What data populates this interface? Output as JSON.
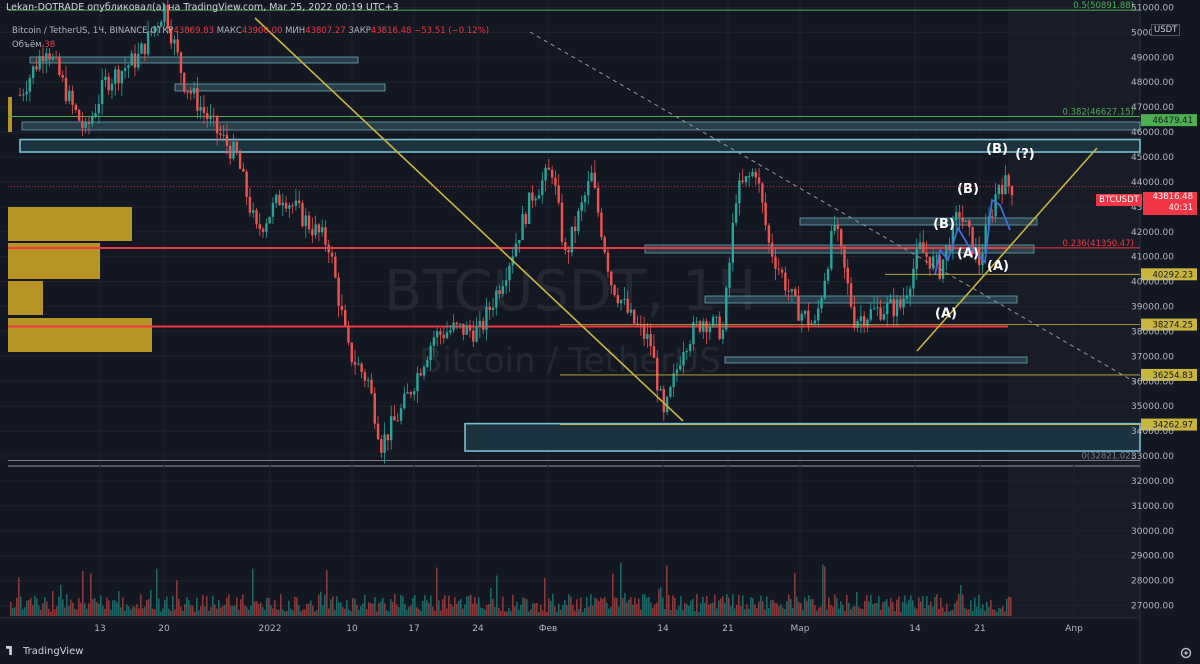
{
  "header": {
    "publisher": "Lekan-DOTRADE опубликовал(а) на TradingView.com, Mar 25, 2022 00:19 UTC+3"
  },
  "info": {
    "symbol": "Bitcoin / TetherUS, 1Ч, BINANCE",
    "open_label": "ОТКР",
    "open": "43869.83",
    "high_label": "МАКС",
    "high": "43900.00",
    "low_label": "МИН",
    "low": "43807.27",
    "close_label": "ЗАКР",
    "close": "43816.48",
    "change": "−53.51 (−0.12%)"
  },
  "volume_label": {
    "label": "Объём",
    "value": "38"
  },
  "watermark": {
    "symbol": "BTCUSDT, 1Ч",
    "name": "Bitcoin / TetherUS"
  },
  "brand": "TradingView",
  "currency_button": "USDT",
  "price_tag": {
    "value": "43816.48",
    "countdown": "40:31"
  },
  "symbol_tag": "BTCUSDT",
  "colors": {
    "background": "#131722",
    "up": "#26a69a",
    "down": "#ef5350",
    "accent_red": "#f23645",
    "fib": "#4caf50",
    "trendline": "#c9b53c",
    "zone": "#7ec8dc"
  },
  "chart_data": {
    "type": "candlestick",
    "instrument": "BTCUSDT",
    "interval": "1Ч",
    "ylim": [
      26500,
      51300
    ],
    "y_ticks": [
      27000,
      28000,
      29000,
      30000,
      31000,
      32000,
      33000,
      34000,
      35000,
      36000,
      37000,
      38000,
      39000,
      40000,
      41000,
      42000,
      43000,
      44000,
      45000,
      46000,
      47000,
      48000,
      49000,
      50000,
      51000
    ],
    "x_ticks": [
      "13",
      "20",
      "2022",
      "10",
      "17",
      "24",
      "Фев",
      "14",
      "21",
      "Мар",
      "14",
      "21",
      "Апр"
    ],
    "trend_points": [
      [
        0,
        47500
      ],
      [
        4,
        49500
      ],
      [
        8,
        47000
      ],
      [
        10,
        46000
      ],
      [
        13,
        48000
      ],
      [
        18,
        49000
      ],
      [
        22,
        51000
      ],
      [
        25,
        48000
      ],
      [
        30,
        46000
      ],
      [
        33,
        45000
      ],
      [
        36,
        42000
      ],
      [
        40,
        43500
      ],
      [
        44,
        42300
      ],
      [
        47,
        41500
      ],
      [
        50,
        37200
      ],
      [
        53,
        36000
      ],
      [
        55,
        33500
      ],
      [
        58,
        34800
      ],
      [
        63,
        37800
      ],
      [
        66,
        38100
      ],
      [
        70,
        38000
      ],
      [
        74,
        40500
      ],
      [
        78,
        43500
      ],
      [
        81,
        44500
      ],
      [
        83,
        41000
      ],
      [
        87,
        44200
      ],
      [
        90,
        40000
      ],
      [
        93,
        38500
      ],
      [
        96,
        37500
      ],
      [
        98,
        34500
      ],
      [
        101,
        37500
      ],
      [
        104,
        38500
      ],
      [
        107,
        38000
      ],
      [
        109,
        43500
      ],
      [
        112,
        44500
      ],
      [
        114,
        41500
      ],
      [
        118,
        39000
      ],
      [
        121,
        38200
      ],
      [
        124,
        42300
      ],
      [
        127,
        38500
      ],
      [
        131,
        38900
      ],
      [
        134,
        39000
      ],
      [
        137,
        41300
      ],
      [
        140,
        40500
      ],
      [
        143,
        42800
      ],
      [
        146,
        40800
      ],
      [
        149,
        44000
      ],
      [
        151,
        43816
      ]
    ],
    "last_price": 43816.48,
    "price_labels": [
      {
        "text": "46479.41",
        "value": 46479.41,
        "color": "#4caf50"
      },
      {
        "text": "43816.48",
        "value": 43816.48,
        "color": "#f23645"
      },
      {
        "text": "40292.23",
        "value": 40292.23,
        "color": "#c9b53c"
      },
      {
        "text": "38274.25",
        "value": 38274.25,
        "color": "#c9b53c"
      },
      {
        "text": "36254.83",
        "value": 36254.83,
        "color": "#c9b53c"
      },
      {
        "text": "34262.97",
        "value": 34262.97,
        "color": "#c9b53c"
      }
    ],
    "fib_levels": [
      {
        "text": "0.5(50891.88)",
        "value": 50891.88,
        "color": "#4caf50"
      },
      {
        "text": "0.382(46627.15)",
        "value": 46627.15,
        "color": "#4caf50"
      },
      {
        "text": "0.236(41350.47)",
        "value": 41350.47,
        "color": "#f23645"
      },
      {
        "text": "0(32821.02)",
        "value": 32821.02,
        "color": "#787b86"
      }
    ],
    "horizontal_lines": [
      {
        "value": 41350,
        "color": "#f23645"
      },
      {
        "value": 38200,
        "color": "#f23645"
      }
    ],
    "zones": [
      {
        "from": 45200,
        "to": 45700,
        "color": "#7ec8dc"
      },
      {
        "from": 33200,
        "to": 34300,
        "color": "#7ec8dc"
      }
    ],
    "wave_labels": [
      {
        "text": "(B)",
        "value": 45000
      },
      {
        "text": "(?)",
        "value": 44800
      },
      {
        "text": "(B)",
        "value": 43400
      },
      {
        "text": "(B)",
        "value": 42000
      },
      {
        "text": "(A)",
        "value": 40800
      },
      {
        "text": "(A)",
        "value": 40300
      },
      {
        "text": "(A)",
        "value": 38400
      }
    ]
  }
}
